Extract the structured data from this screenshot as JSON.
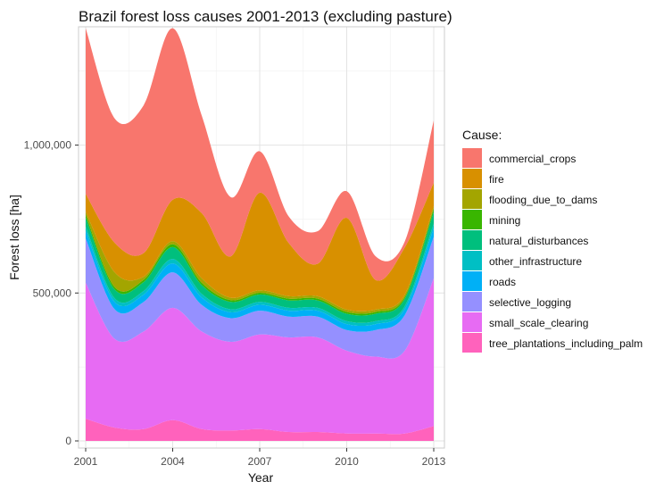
{
  "chart_data": {
    "type": "area",
    "stacked": true,
    "title": "Brazil forest loss causes 2001-2013 (excluding pasture)",
    "xlabel": "Year",
    "ylabel": "Forest loss [ha]",
    "xlim": [
      2001,
      2013
    ],
    "ylim": [
      0,
      1400000
    ],
    "x_ticks": [
      2001,
      2004,
      2007,
      2010,
      2013
    ],
    "x_tick_labels": [
      "2001",
      "2004",
      "2007",
      "2010",
      "2013"
    ],
    "y_ticks": [
      0,
      500000,
      1000000
    ],
    "y_tick_labels": [
      "0",
      "500,000",
      "1,000,000"
    ],
    "grid": true,
    "legend": {
      "title": "Cause:",
      "position": "right"
    },
    "x": [
      2001,
      2002,
      2003,
      2004,
      2005,
      2006,
      2007,
      2008,
      2009,
      2010,
      2011,
      2012,
      2013
    ],
    "series": [
      {
        "name": "commercial_crops",
        "color": "#F8766D",
        "values": [
          560000,
          420000,
          500000,
          580000,
          330000,
          200000,
          140000,
          90000,
          110000,
          90000,
          80000,
          20000,
          210000
        ]
      },
      {
        "name": "fire",
        "color": "#D89000",
        "values": [
          60000,
          100000,
          80000,
          140000,
          220000,
          140000,
          330000,
          180000,
          110000,
          310000,
          100000,
          160000,
          80000
        ]
      },
      {
        "name": "flooding_due_to_dams",
        "color": "#A3A500",
        "values": [
          10000,
          50000,
          10000,
          10000,
          15000,
          8000,
          8000,
          8000,
          8000,
          8000,
          8000,
          8000,
          8000
        ]
      },
      {
        "name": "mining",
        "color": "#39B600",
        "values": [
          10000,
          8000,
          8000,
          10000,
          8000,
          6000,
          6000,
          6000,
          6000,
          6000,
          6000,
          6000,
          10000
        ]
      },
      {
        "name": "natural_disturbances",
        "color": "#00BF7D",
        "values": [
          30000,
          30000,
          30000,
          40000,
          30000,
          25000,
          25000,
          25000,
          25000,
          25000,
          25000,
          25000,
          40000
        ]
      },
      {
        "name": "other_infrastructure",
        "color": "#00BFC4",
        "values": [
          15000,
          12000,
          12000,
          15000,
          12000,
          10000,
          10000,
          10000,
          10000,
          10000,
          10000,
          10000,
          15000
        ]
      },
      {
        "name": "roads",
        "color": "#00B0F6",
        "values": [
          25000,
          25000,
          25000,
          30000,
          25000,
          20000,
          20000,
          20000,
          20000,
          20000,
          20000,
          20000,
          30000
        ]
      },
      {
        "name": "selective_logging",
        "color": "#9590FF",
        "values": [
          150000,
          100000,
          100000,
          120000,
          90000,
          80000,
          80000,
          70000,
          70000,
          70000,
          90000,
          120000,
          140000
        ]
      },
      {
        "name": "small_scale_clearing",
        "color": "#E76BF3",
        "values": [
          460000,
          300000,
          330000,
          380000,
          330000,
          300000,
          320000,
          320000,
          320000,
          280000,
          260000,
          280000,
          500000
        ]
      },
      {
        "name": "tree_plantations_including_palm",
        "color": "#FF62BC",
        "values": [
          75000,
          45000,
          40000,
          70000,
          40000,
          35000,
          40000,
          30000,
          30000,
          25000,
          25000,
          25000,
          50000
        ]
      }
    ]
  }
}
